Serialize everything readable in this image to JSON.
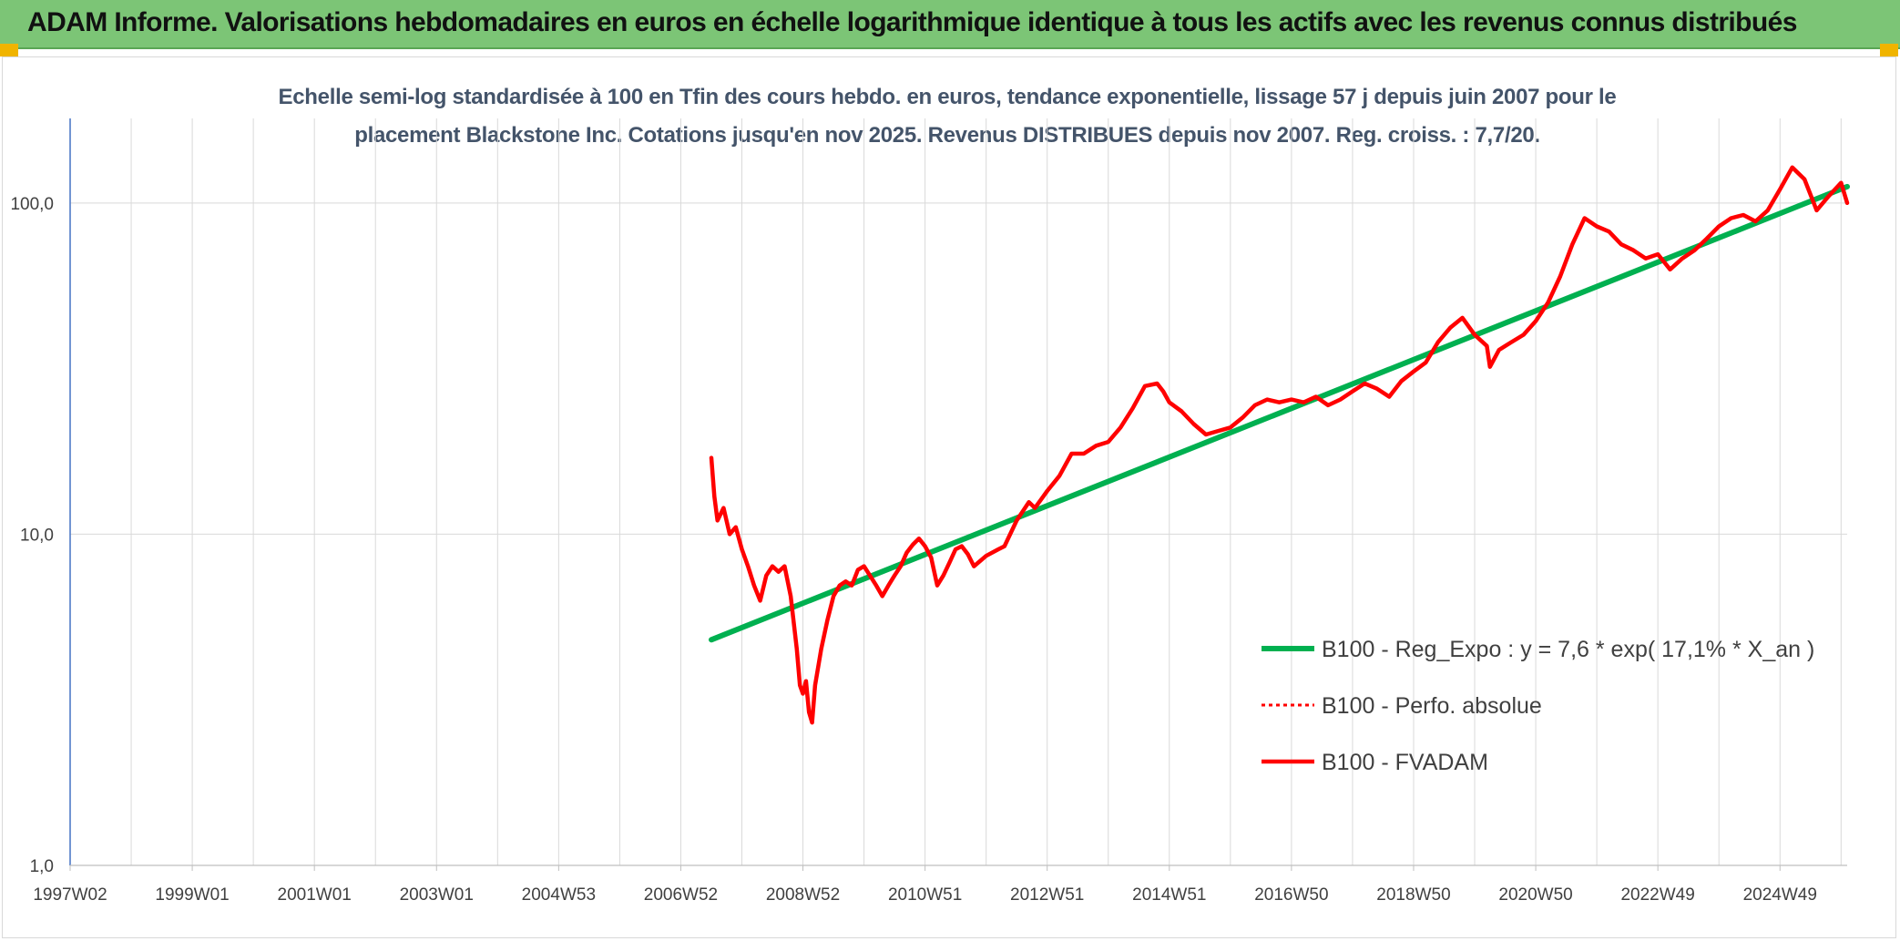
{
  "header": {
    "title": "ADAM Informe. Valorisations hebdomadaires en euros en échelle logarithmique identique à tous les actifs avec les revenus connus distribués"
  },
  "colors": {
    "banner": "#7cc576",
    "trend": "#00b050",
    "series": "#ff0000",
    "grid": "#d9d9d9",
    "axis": "#4472c4",
    "corner": "#f0b400"
  },
  "chart_data": {
    "type": "line",
    "title_line1": "Echelle semi-log standardisée à 100 en Tfin des cours hebdo. en euros, tendance exponentielle, lissage 57 j depuis juin 2007 pour le",
    "title_line2": "placement Blackstone Inc. Cotations jusqu'en nov 2025. Revenus DISTRIBUES depuis nov 2007. Reg. croiss. : 7,7/20.",
    "y_scale": "log",
    "ylim": [
      1,
      180
    ],
    "y_ticks": [
      {
        "value": 1,
        "label": "1,0"
      },
      {
        "value": 10,
        "label": "10,0"
      },
      {
        "value": 100,
        "label": "100,0"
      }
    ],
    "xlim": [
      1997.0,
      2026.1
    ],
    "x_ticks": [
      {
        "value": 1997.0,
        "label": "1997W02"
      },
      {
        "value": 1999.0,
        "label": "1999W01"
      },
      {
        "value": 2001.0,
        "label": "2001W01"
      },
      {
        "value": 2003.0,
        "label": "2003W01"
      },
      {
        "value": 2005.0,
        "label": "2004W53"
      },
      {
        "value": 2007.0,
        "label": "2006W52"
      },
      {
        "value": 2009.0,
        "label": "2008W52"
      },
      {
        "value": 2011.0,
        "label": "2010W51"
      },
      {
        "value": 2013.0,
        "label": "2012W51"
      },
      {
        "value": 2015.0,
        "label": "2014W51"
      },
      {
        "value": 2017.0,
        "label": "2016W50"
      },
      {
        "value": 2019.0,
        "label": "2018W50"
      },
      {
        "value": 2021.0,
        "label": "2020W50"
      },
      {
        "value": 2023.0,
        "label": "2022W49"
      },
      {
        "value": 2025.0,
        "label": "2024W49"
      }
    ],
    "x_gridlines": [
      1997.0,
      1998.0,
      1999.0,
      2000.0,
      2001.0,
      2002.0,
      2003.0,
      2004.0,
      2005.0,
      2006.0,
      2007.0,
      2008.0,
      2009.0,
      2010.0,
      2011.0,
      2012.0,
      2013.0,
      2014.0,
      2015.0,
      2016.0,
      2017.0,
      2018.0,
      2019.0,
      2020.0,
      2021.0,
      2022.0,
      2023.0,
      2024.0,
      2025.0,
      2026.0
    ],
    "grid": true,
    "legend_position": "lower-right",
    "series": [
      {
        "name": "B100 - Reg_Expo : y = 7,6 * exp( 17,1% *  X_an )",
        "style": "solid-green",
        "x": [
          2007.5,
          2026.1
        ],
        "y": [
          4.8,
          112
        ]
      },
      {
        "name": "B100 - Perfo. absolue",
        "style": "dotted-red",
        "x": [],
        "y": []
      },
      {
        "name": "B100 - FVADAM",
        "style": "solid-red",
        "x": [
          2007.5,
          2007.55,
          2007.6,
          2007.7,
          2007.8,
          2007.9,
          2008.0,
          2008.1,
          2008.2,
          2008.3,
          2008.4,
          2008.5,
          2008.6,
          2008.7,
          2008.8,
          2008.9,
          2008.95,
          2009.0,
          2009.05,
          2009.1,
          2009.15,
          2009.2,
          2009.3,
          2009.4,
          2009.5,
          2009.6,
          2009.7,
          2009.8,
          2009.9,
          2010.0,
          2010.2,
          2010.3,
          2010.4,
          2010.5,
          2010.6,
          2010.7,
          2010.8,
          2010.9,
          2011.0,
          2011.1,
          2011.2,
          2011.3,
          2011.4,
          2011.5,
          2011.6,
          2011.7,
          2011.8,
          2012.0,
          2012.2,
          2012.3,
          2012.5,
          2012.7,
          2012.8,
          2013.0,
          2013.2,
          2013.4,
          2013.6,
          2013.8,
          2014.0,
          2014.2,
          2014.4,
          2014.6,
          2014.8,
          2014.9,
          2015.0,
          2015.2,
          2015.4,
          2015.6,
          2015.8,
          2016.0,
          2016.2,
          2016.4,
          2016.6,
          2016.8,
          2017.0,
          2017.2,
          2017.4,
          2017.6,
          2017.8,
          2018.0,
          2018.2,
          2018.4,
          2018.6,
          2018.8,
          2019.0,
          2019.2,
          2019.4,
          2019.6,
          2019.8,
          2020.0,
          2020.2,
          2020.25,
          2020.4,
          2020.6,
          2020.8,
          2021.0,
          2021.2,
          2021.4,
          2021.6,
          2021.8,
          2022.0,
          2022.2,
          2022.4,
          2022.6,
          2022.8,
          2023.0,
          2023.2,
          2023.4,
          2023.6,
          2023.8,
          2024.0,
          2024.2,
          2024.4,
          2024.6,
          2024.8,
          2025.0,
          2025.2,
          2025.4,
          2025.6,
          2025.8,
          2026.0,
          2026.1
        ],
        "y": [
          17,
          13,
          11,
          12,
          10,
          10.5,
          9,
          8,
          7,
          6.3,
          7.5,
          8,
          7.7,
          8,
          6.5,
          4.5,
          3.5,
          3.3,
          3.6,
          2.9,
          2.7,
          3.5,
          4.5,
          5.5,
          6.5,
          7,
          7.2,
          7,
          7.8,
          8,
          7,
          6.5,
          7,
          7.5,
          8,
          8.8,
          9.3,
          9.7,
          9.2,
          8.5,
          7,
          7.5,
          8.2,
          9,
          9.2,
          8.7,
          8,
          8.6,
          9,
          9.2,
          11,
          12.5,
          12,
          13.5,
          15,
          17.5,
          17.5,
          18.5,
          19,
          21,
          24,
          28,
          28.5,
          27,
          25,
          23.5,
          21.5,
          20,
          20.5,
          21,
          22.5,
          24.5,
          25.5,
          25,
          25.5,
          25,
          26,
          24.5,
          25.5,
          27,
          28.5,
          27.5,
          26,
          29,
          31,
          33,
          38,
          42,
          45,
          40,
          37,
          32,
          36,
          38,
          40,
          44,
          50,
          60,
          75,
          90,
          85,
          82,
          75,
          72,
          68,
          70,
          63,
          68,
          72,
          78,
          85,
          90,
          92,
          88,
          95,
          110,
          128,
          118,
          95,
          105,
          115,
          100
        ]
      }
    ]
  }
}
